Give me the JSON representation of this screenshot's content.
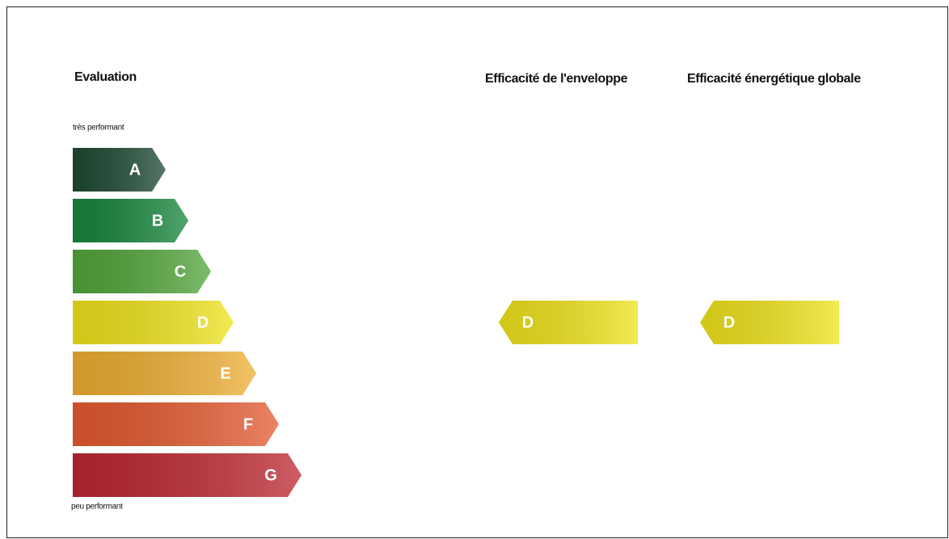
{
  "title": "Evaluation",
  "top_label": "très performant",
  "bottom_label": "peu performant",
  "classes": [
    {
      "letter": "A",
      "color": "#1e4a33"
    },
    {
      "letter": "B",
      "color": "#17863c"
    },
    {
      "letter": "C",
      "color": "#52a53a"
    },
    {
      "letter": "D",
      "color": "#efe31c"
    },
    {
      "letter": "E",
      "color": "#eeae32"
    },
    {
      "letter": "F",
      "color": "#e45a30"
    },
    {
      "letter": "G",
      "color": "#bd2730"
    }
  ],
  "indicators": [
    {
      "title": "Efficacité de l'enveloppe",
      "letter": "D"
    },
    {
      "title": "Efficacité énergétique globale",
      "letter": "D"
    }
  ]
}
